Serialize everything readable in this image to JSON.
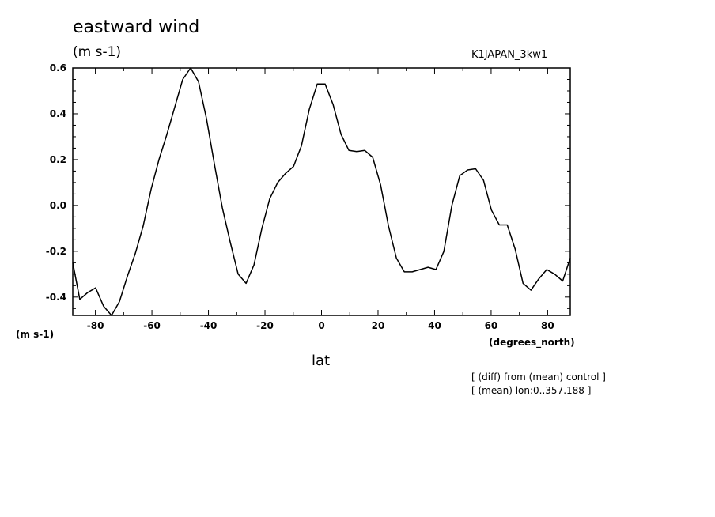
{
  "chart_data": {
    "type": "line",
    "title": "eastward wind",
    "units_label": "(m s-1)",
    "run_label": "K1JAPAN_3kw1",
    "ylabel": "(m s-1)",
    "xunit": "(degrees_north)",
    "xlabel": "lat",
    "xlim": [
      -88,
      88
    ],
    "ylim": [
      -0.48,
      0.6
    ],
    "xticks": [
      -80,
      -60,
      -40,
      -20,
      0,
      20,
      40,
      60,
      80
    ],
    "xtick_labels": [
      "-80",
      "-60",
      "-40",
      "-20",
      "0",
      "20",
      "40",
      "60",
      "80"
    ],
    "yticks": [
      -0.4,
      -0.2,
      0.0,
      0.2,
      0.4,
      0.6
    ],
    "ytick_labels": [
      "-0.4",
      "-0.2",
      "0.0",
      "0.2",
      "0.4",
      "0.6"
    ],
    "grid": false,
    "series": [
      {
        "x": [
          -88,
          -85.5,
          -82.7,
          -79.9,
          -77.1,
          -74.3,
          -71.5,
          -68.7,
          -65.9,
          -63.1,
          -60.3,
          -57.5,
          -54.7,
          -51.9,
          -49.1,
          -46.3,
          -43.5,
          -40.7,
          -37.9,
          -35.1,
          -32.3,
          -29.5,
          -26.7,
          -23.9,
          -21.1,
          -18.3,
          -15.5,
          -12.7,
          -9.9,
          -7.1,
          -4.3,
          -1.5,
          1.3,
          4.1,
          6.9,
          9.7,
          12.5,
          15.3,
          18.1,
          20.9,
          23.7,
          26.5,
          29.3,
          32.1,
          34.9,
          37.7,
          40.5,
          43.3,
          46.1,
          48.9,
          51.7,
          54.5,
          57.3,
          60.1,
          62.9,
          65.7,
          68.5,
          71.3,
          74.1,
          76.9,
          79.7,
          82.5,
          85.3,
          88
        ],
        "y": [
          -0.25,
          -0.41,
          -0.38,
          -0.36,
          -0.44,
          -0.48,
          -0.42,
          -0.31,
          -0.21,
          -0.09,
          0.07,
          0.2,
          0.31,
          0.43,
          0.55,
          0.6,
          0.54,
          0.38,
          0.18,
          -0.01,
          -0.16,
          -0.3,
          -0.34,
          -0.26,
          -0.1,
          0.03,
          0.1,
          0.14,
          0.17,
          0.26,
          0.42,
          0.53,
          0.53,
          0.44,
          0.31,
          0.24,
          0.235,
          0.24,
          0.21,
          0.09,
          -0.09,
          -0.23,
          -0.29,
          -0.29,
          -0.28,
          -0.27,
          -0.28,
          -0.2,
          0.0,
          0.13,
          0.155,
          0.16,
          0.11,
          -0.02,
          -0.085,
          -0.085,
          -0.19,
          -0.34,
          -0.37,
          -0.32,
          -0.28,
          -0.3,
          -0.33,
          -0.23
        ]
      }
    ],
    "annotations": [
      "[ (diff) from (mean) control ]",
      "[ (mean) lon:0..357.188 ]"
    ]
  }
}
